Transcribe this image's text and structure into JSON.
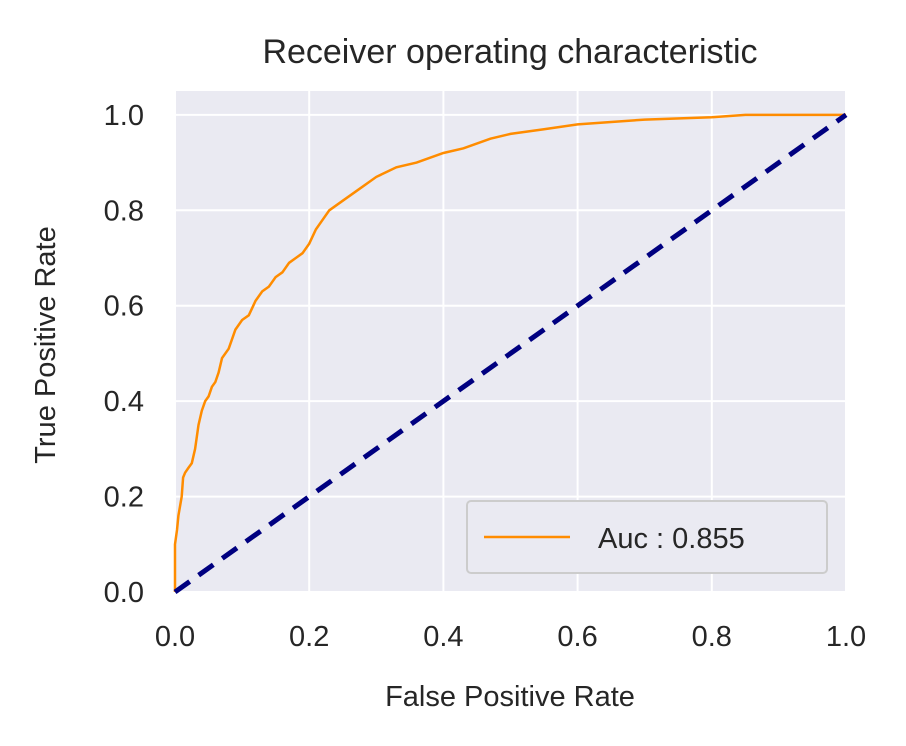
{
  "chart_data": {
    "type": "line",
    "title": "Receiver operating characteristic",
    "xlabel": "False Positive Rate",
    "ylabel": "True Positive Rate",
    "xlim": [
      0.0,
      1.0
    ],
    "ylim": [
      0.0,
      1.05
    ],
    "xticks": [
      "0.0",
      "0.2",
      "0.4",
      "0.6",
      "0.8",
      "1.0"
    ],
    "yticks": [
      "0.0",
      "0.2",
      "0.4",
      "0.6",
      "0.8",
      "1.0"
    ],
    "grid": true,
    "legend_position": "lower-right",
    "series": [
      {
        "name": "Auc : 0.855",
        "color": "#ff8c00",
        "style": "solid",
        "x": [
          0.0,
          0.0,
          0.003,
          0.005,
          0.01,
          0.012,
          0.015,
          0.02,
          0.025,
          0.03,
          0.035,
          0.04,
          0.045,
          0.05,
          0.055,
          0.06,
          0.065,
          0.07,
          0.08,
          0.09,
          0.1,
          0.11,
          0.12,
          0.13,
          0.14,
          0.15,
          0.16,
          0.17,
          0.18,
          0.19,
          0.2,
          0.21,
          0.22,
          0.23,
          0.25,
          0.27,
          0.3,
          0.33,
          0.36,
          0.4,
          0.43,
          0.47,
          0.5,
          0.55,
          0.6,
          0.65,
          0.7,
          0.8,
          0.85,
          0.9,
          0.95,
          1.0
        ],
        "y": [
          0.0,
          0.1,
          0.13,
          0.16,
          0.2,
          0.24,
          0.25,
          0.26,
          0.27,
          0.3,
          0.35,
          0.38,
          0.4,
          0.41,
          0.43,
          0.44,
          0.46,
          0.49,
          0.51,
          0.55,
          0.57,
          0.58,
          0.61,
          0.63,
          0.64,
          0.66,
          0.67,
          0.69,
          0.7,
          0.71,
          0.73,
          0.76,
          0.78,
          0.8,
          0.82,
          0.84,
          0.87,
          0.89,
          0.9,
          0.92,
          0.93,
          0.95,
          0.96,
          0.97,
          0.98,
          0.985,
          0.99,
          0.995,
          1.0,
          1.0,
          1.0,
          1.0
        ]
      },
      {
        "name": "",
        "color": "#000080",
        "style": "dashed",
        "x": [
          0.0,
          1.0
        ],
        "y": [
          0.0,
          1.0
        ]
      }
    ]
  }
}
